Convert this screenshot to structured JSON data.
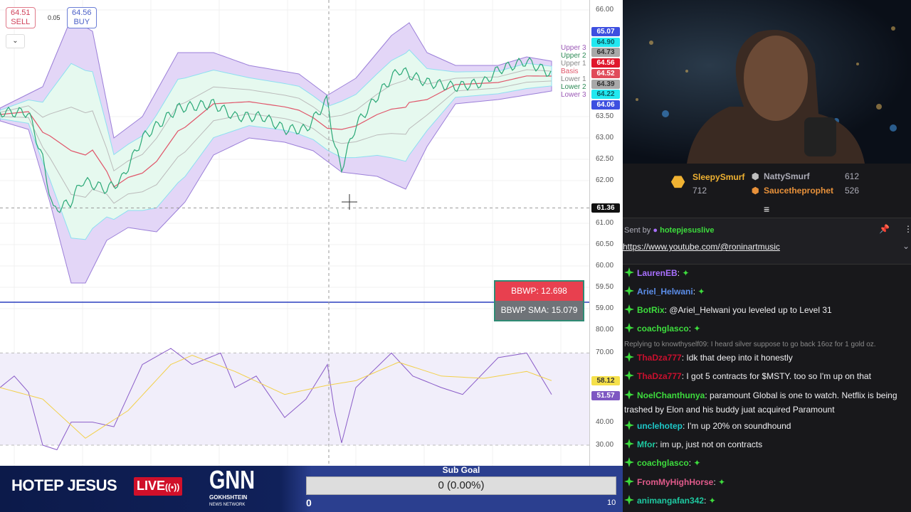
{
  "chart": {
    "sell_price": "64.51",
    "sell_label": "SELL",
    "buy_price": "64.56",
    "buy_label": "BUY",
    "spread": "0.05",
    "dropdown_icon": "chevron-down-icon",
    "price_ticks": [
      "66.00",
      "63.50",
      "63.00",
      "62.50",
      "62.00",
      "61.00",
      "60.50",
      "60.00",
      "59.50",
      "59.00"
    ],
    "price_tick_values": [
      66,
      63.5,
      63,
      62.5,
      62,
      61,
      60.5,
      60,
      59.5,
      59
    ],
    "rsi_ticks": [
      "80.00",
      "70.00",
      "40.00",
      "30.00"
    ],
    "rsi_tick_values": [
      80,
      70,
      40,
      30
    ],
    "price_labels": [
      {
        "text": "65.07",
        "value": 65.07,
        "bg": "#3d4fe0",
        "fg": "#ffffff"
      },
      {
        "text": "64.90",
        "value": 64.9,
        "bg": "#22e8f0",
        "fg": "#0b5a60"
      },
      {
        "text": "64.73",
        "value": 64.73,
        "bg": "#a8a8a8",
        "fg": "#333333"
      },
      {
        "text": "64.56",
        "value": 64.56,
        "bg": "#e0172c",
        "fg": "#ffffff"
      },
      {
        "text": "64.52",
        "value": 64.52,
        "bg": "#e04b5a",
        "fg": "#ffffff"
      },
      {
        "text": "64.39",
        "value": 64.39,
        "bg": "#a8a8a8",
        "fg": "#333333"
      },
      {
        "text": "64.22",
        "value": 64.22,
        "bg": "#22e8f0",
        "fg": "#0b5a60"
      },
      {
        "text": "64.06",
        "value": 64.06,
        "bg": "#3d4fe0",
        "fg": "#ffffff"
      },
      {
        "text": "61.36",
        "value": 61.36,
        "bg": "#111111",
        "fg": "#ffffff"
      }
    ],
    "rsi_labels": [
      {
        "text": "58.12",
        "value": 58.12,
        "bg": "#f5e04a",
        "fg": "#333333"
      },
      {
        "text": "51.57",
        "value": 51.57,
        "bg": "#7e57c2",
        "fg": "#ffffff"
      }
    ],
    "band_legend": [
      {
        "text": "Upper 3",
        "color": "#9b59b6"
      },
      {
        "text": "Upper 2",
        "color": "#2e8b57"
      },
      {
        "text": "Upper 1",
        "color": "#888888"
      },
      {
        "text": "Basis",
        "color": "#e0566a"
      },
      {
        "text": "Lower 1",
        "color": "#888888"
      },
      {
        "text": "Lower 2",
        "color": "#2e8b57"
      },
      {
        "text": "Lower 3",
        "color": "#9b59b6"
      }
    ],
    "bbwp": "BBWP: 12.698",
    "bbwp_sma": "BBWP SMA: 15.079",
    "crosshair_price": 61.36,
    "price_series": {
      "x": [
        0,
        40,
        60,
        75,
        100,
        115,
        150,
        170,
        200,
        250,
        300,
        330,
        370,
        400,
        430,
        460,
        470,
        480,
        500,
        540,
        560,
        600,
        640,
        680,
        700,
        740,
        775
      ],
      "y": [
        63.6,
        63.6,
        62.5,
        61.3,
        61.5,
        62,
        61.8,
        62,
        63,
        63.7,
        63.8,
        63.5,
        63.5,
        63.2,
        63.2,
        63.9,
        62.8,
        62.3,
        63.3,
        64.2,
        64.6,
        64.3,
        64.2,
        64.3,
        64.6,
        64.8,
        64.5
      ]
    },
    "upper3": {
      "x": [
        0,
        60,
        100,
        130,
        160,
        200,
        250,
        300,
        350,
        420,
        460,
        500,
        550,
        575,
        600,
        640,
        700,
        740,
        775
      ],
      "y": [
        63.7,
        64.2,
        65.8,
        65.5,
        63,
        63.5,
        65,
        65,
        64.7,
        64.5,
        64,
        64.4,
        65.4,
        65.7,
        65,
        64.7,
        64.7,
        64.9,
        64.8
      ]
    },
    "lower3": {
      "x": [
        0,
        40,
        70,
        100,
        120,
        150,
        180,
        220,
        260,
        300,
        350,
        400,
        440,
        480,
        530,
        570,
        600,
        640,
        700,
        775
      ],
      "y": [
        63.4,
        63.2,
        61.5,
        59.6,
        59.6,
        60.6,
        60.9,
        60.8,
        61.5,
        62.6,
        63,
        62.9,
        62.7,
        62.2,
        62.1,
        61.8,
        62.8,
        63.8,
        63.9,
        64.1
      ]
    },
    "rsi_series": {
      "x": [
        0,
        20,
        40,
        60,
        80,
        100,
        130,
        160,
        200,
        240,
        270,
        310,
        330,
        360,
        400,
        430,
        460,
        470,
        480,
        500,
        550,
        580,
        620,
        650,
        700,
        740,
        775
      ],
      "y": [
        55,
        60,
        53,
        30,
        28,
        40,
        40,
        38,
        65,
        72,
        65,
        70,
        55,
        60,
        42,
        50,
        65,
        45,
        31,
        55,
        70,
        60,
        55,
        52,
        68,
        70,
        52
      ]
    },
    "rsi_signal": {
      "x": [
        0,
        60,
        120,
        180,
        240,
        270,
        330,
        400,
        460,
        500,
        560,
        620,
        680,
        740,
        775
      ],
      "y": [
        55,
        50,
        33,
        45,
        65,
        69,
        62,
        52,
        56,
        58,
        66,
        60,
        59,
        62,
        58
      ]
    }
  },
  "leaderboard": [
    {
      "rank": "1",
      "name": "SleepySmurf",
      "count": "712",
      "color": "#f0b232"
    },
    {
      "rank": "2",
      "name": "NattySmurf",
      "count": "612",
      "color": "#bfbfbf"
    },
    {
      "rank": "3",
      "name": "Saucetheprophet",
      "count": "526",
      "color": "#e8913a"
    }
  ],
  "pinned": {
    "sent_by": "Sent by",
    "user": "hotepjesuslive",
    "link": "https://www.youtube.com/@roninartmusic"
  },
  "chat": [
    {
      "user": "LaurenEB",
      "color": "#a970ff",
      "text": ""
    },
    {
      "user": "Ariel_Helwani",
      "color": "#5b8de8",
      "text": ""
    },
    {
      "user": "BotRix",
      "color": "#3ddc3d",
      "text": "@Ariel_Helwani you leveled up to Level 31"
    },
    {
      "user": "coachglasco",
      "color": "#3ddc3d",
      "text": ""
    },
    {
      "user": "",
      "color": "#8a8a8a",
      "text": "Replying to knowthyself09: I heard silver suppose to go back 16oz for 1 gold oz."
    },
    {
      "user": "ThaDza777",
      "color": "#c8102e",
      "text": "Idk that deep into it honestly"
    },
    {
      "user": "ThaDza777",
      "color": "#c8102e",
      "text": "I got 5 contracts for $MSTY. too so I'm up on that"
    },
    {
      "user": "NoelChanthunya",
      "color": "#3ddc3d",
      "text": "paramount Global is one to watch. Netflix is being",
      "text2": "trashed by Elon and his buddy juat acquired Paramount"
    },
    {
      "user": "unclehotep",
      "color": "#1ec8c8",
      "text": "I'm up 20% on soundhound"
    },
    {
      "user": "Mfor",
      "color": "#1ec8a0",
      "text": "im up, just not on contracts"
    },
    {
      "user": "coachglasco",
      "color": "#3ddc3d",
      "text": ""
    },
    {
      "user": "FromMyHighHorse",
      "color": "#e05a8a",
      "text": ""
    },
    {
      "user": "animangafan342",
      "color": "#1ec8a0",
      "text": ""
    }
  ],
  "bottom": {
    "show": "HOTEP JESUS",
    "live": "LIVE",
    "logo": "GNN",
    "logo_sub": "GOKHSHTEIN",
    "logo_sub2": "NEWS NETWORK",
    "goal_title": "Sub Goal",
    "goal_value": "0 (0.00%)",
    "goal_progress": 0,
    "goal_min": "0",
    "goal_max": "10"
  }
}
